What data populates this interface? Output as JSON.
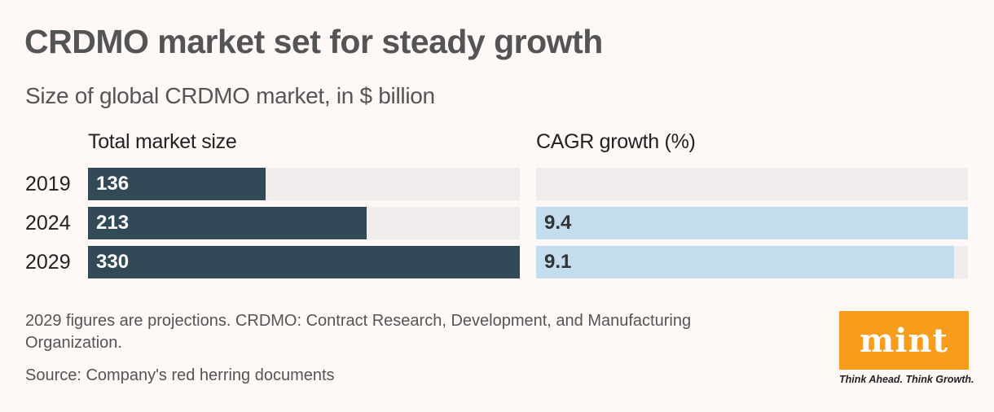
{
  "chart_data": [
    {
      "type": "bar",
      "orientation": "horizontal",
      "title": "CRDMO market set for steady growth",
      "subtitle": "Size of global CRDMO market, in $ billion",
      "panel_title": "Total market size",
      "categories": [
        "2019",
        "2024",
        "2029"
      ],
      "values": [
        136,
        213,
        330
      ],
      "xlim": [
        0,
        330
      ],
      "color": "#324a58",
      "label_color": "#ffffff"
    },
    {
      "type": "bar",
      "orientation": "horizontal",
      "panel_title": "CAGR growth (%)",
      "categories": [
        "2019",
        "2024",
        "2029"
      ],
      "values": [
        null,
        9.4,
        9.1
      ],
      "xlim": [
        0,
        9.4
      ],
      "color": "#c2ddee",
      "label_color": "#333333"
    }
  ],
  "header": {
    "title": "CRDMO market set for steady growth",
    "subtitle": "Size of global CRDMO market, in $ billion"
  },
  "panels": {
    "left_title": "Total market size",
    "right_title": "CAGR growth (%)"
  },
  "years": [
    "2019",
    "2024",
    "2029"
  ],
  "market_size": [
    "136",
    "213",
    "330"
  ],
  "cagr": [
    "",
    "9.4",
    "9.1"
  ],
  "footer": {
    "note": "2029 figures are projections. CRDMO: Contract Research, Development, and Manufacturing Organization.",
    "source": "Source: Company's red herring documents"
  },
  "brand": {
    "logo_text": "mint",
    "tagline": "Think Ahead. Think Growth.",
    "color": "#f89c1c"
  },
  "colors": {
    "background": "#fef8f7",
    "track": "#f1eded"
  }
}
